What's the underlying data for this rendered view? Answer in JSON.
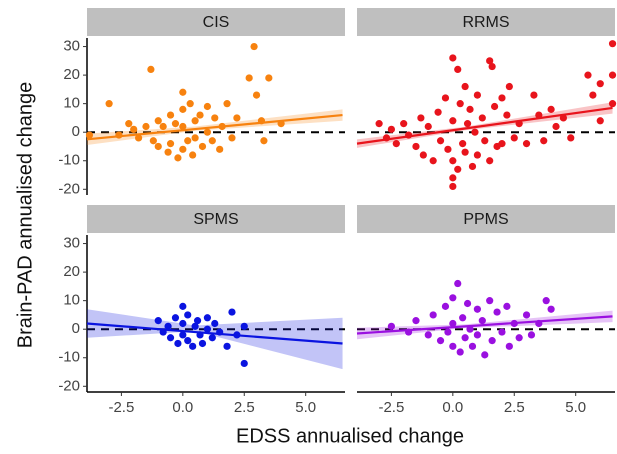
{
  "axis_labels": {
    "x": "EDSS annualised change",
    "y": "Brain-PAD annualised change"
  },
  "chart_data": [
    {
      "type": "scatter",
      "title": "CIS",
      "color": "#f7820f",
      "x": [
        -3.8,
        -3.0,
        -2.6,
        -2.2,
        -2.0,
        -1.8,
        -1.5,
        -1.3,
        -1.2,
        -1.0,
        -1.0,
        -0.8,
        -0.6,
        -0.5,
        -0.5,
        -0.3,
        -0.2,
        0.0,
        0.0,
        0.0,
        0.0,
        0.2,
        0.3,
        0.4,
        0.5,
        0.5,
        0.7,
        0.8,
        1.0,
        1.0,
        1.2,
        1.3,
        1.5,
        1.6,
        1.8,
        2.0,
        2.2,
        2.7,
        2.9,
        3.0,
        3.2,
        3.3,
        3.5,
        4.0
      ],
      "values": [
        -1,
        10,
        -1,
        3,
        1,
        -2,
        2,
        22,
        -3,
        4,
        -5,
        2,
        -7,
        -4,
        6,
        3,
        -9,
        14,
        8,
        -6,
        2,
        -3,
        10,
        -8,
        4,
        -2,
        6,
        -5,
        9,
        0,
        -3,
        5,
        -6,
        2,
        10,
        -2,
        5,
        19,
        30,
        13,
        4,
        -3,
        19,
        3
      ],
      "fit": {
        "x": [
          -3.9,
          0.5,
          6.5
        ],
        "y": [
          -2.5,
          1.1,
          6
        ],
        "lower": [
          -4.5,
          0.5,
          4
        ],
        "upper": [
          -0.5,
          2,
          8
        ]
      },
      "hline": 0,
      "xlim": [
        -3.9,
        6.6
      ],
      "ylim": [
        -22,
        33
      ],
      "yticks": [
        -20,
        -10,
        0,
        10,
        20,
        30
      ]
    },
    {
      "type": "scatter",
      "title": "RRMS",
      "color": "#e8141c",
      "x": [
        -3.0,
        -2.7,
        -2.5,
        -2.3,
        -2.0,
        -1.8,
        -1.5,
        -1.3,
        -1.2,
        -1.0,
        -0.8,
        -0.6,
        -0.5,
        -0.3,
        -0.2,
        0.0,
        0.0,
        0.0,
        0.0,
        0.0,
        0.2,
        0.2,
        0.3,
        0.4,
        0.5,
        0.5,
        0.6,
        0.7,
        0.8,
        0.9,
        1.0,
        1.0,
        1.2,
        1.3,
        1.5,
        1.5,
        1.6,
        1.7,
        1.8,
        2.0,
        2.0,
        2.2,
        2.3,
        2.5,
        2.7,
        3.0,
        3.3,
        3.5,
        3.7,
        4.0,
        4.2,
        4.5,
        4.8,
        5.5,
        5.7,
        6.0,
        6.5,
        6.5,
        6.5,
        6.0
      ],
      "values": [
        3,
        -2,
        1,
        -4,
        3,
        -1,
        -5,
        5,
        -8,
        2,
        -10,
        7,
        -3,
        12,
        -6,
        26,
        -16,
        -19,
        4,
        -10,
        22,
        -13,
        10,
        -4,
        16,
        -7,
        3,
        8,
        -12,
        0,
        13,
        -8,
        5,
        -3,
        25,
        -10,
        23,
        9,
        -5,
        12,
        -4,
        6,
        16,
        -2,
        3,
        -4,
        13,
        6,
        -3,
        8,
        2,
        5,
        -2,
        20,
        13,
        17,
        31,
        20,
        10,
        4
      ],
      "fit": {
        "x": [
          -3.9,
          0.5,
          6.5
        ],
        "y": [
          -4,
          1.3,
          8.5
        ],
        "lower": [
          -5.5,
          0.7,
          6.5
        ],
        "upper": [
          -2.5,
          1.9,
          10.5
        ]
      },
      "hline": 0,
      "xlim": [
        -3.9,
        6.6
      ],
      "ylim": [
        -22,
        33
      ]
    },
    {
      "type": "scatter",
      "title": "SPMS",
      "color": "#0a14e0",
      "x": [
        -1.0,
        -0.8,
        -0.6,
        -0.5,
        -0.3,
        -0.2,
        0.0,
        0.0,
        0.0,
        0.2,
        0.2,
        0.4,
        0.5,
        0.6,
        0.7,
        0.8,
        1.0,
        1.0,
        1.2,
        1.3,
        1.5,
        1.8,
        2.0,
        2.2,
        2.5,
        2.5
      ],
      "values": [
        3,
        -1,
        1,
        -3,
        4,
        -5,
        8,
        -2,
        2,
        5,
        -4,
        -6,
        1,
        3,
        -2,
        -5,
        4,
        0,
        -3,
        2,
        -1,
        -6,
        6,
        -2,
        1,
        -12
      ],
      "fit": {
        "x": [
          -3.9,
          0.5,
          6.5
        ],
        "y": [
          2,
          -1,
          -5
        ],
        "lower": [
          -3,
          -0.7,
          -14
        ],
        "upper": [
          7,
          1.3,
          4
        ]
      },
      "hline": 0,
      "xlim": [
        -3.9,
        6.6
      ],
      "ylim": [
        -22,
        33
      ],
      "yticks": [
        -20,
        -10,
        0,
        10,
        20,
        30
      ],
      "xticks": [
        -2.5,
        {
          "value": 0,
          "label": "0.0"
        },
        2.5,
        {
          "value": 5,
          "label": "5.0"
        }
      ]
    },
    {
      "type": "scatter",
      "title": "PPMS",
      "color": "#9a10e0",
      "x": [
        -2.5,
        -1.8,
        -1.5,
        -1.0,
        -0.8,
        -0.5,
        -0.3,
        -0.2,
        0.0,
        0.0,
        0.0,
        0.2,
        0.3,
        0.4,
        0.5,
        0.6,
        0.7,
        0.8,
        1.0,
        1.0,
        1.2,
        1.3,
        1.5,
        1.6,
        1.8,
        2.0,
        2.2,
        2.3,
        2.5,
        2.7,
        3.0,
        3.2,
        3.5,
        3.8,
        4.0
      ],
      "values": [
        1,
        -1,
        3,
        -2,
        5,
        -4,
        8,
        -1,
        11,
        -6,
        2,
        16,
        -8,
        4,
        -3,
        9,
        0,
        -6,
        7,
        -2,
        3,
        -9,
        10,
        -4,
        6,
        -1,
        8,
        -6,
        2,
        -3,
        5,
        -2,
        2,
        10,
        7
      ],
      "fit": {
        "x": [
          -3.9,
          0.5,
          6.5
        ],
        "y": [
          -1.5,
          1,
          4.5
        ],
        "lower": [
          -3.5,
          0.4,
          2.5
        ],
        "upper": [
          0.5,
          1.7,
          6.5
        ]
      },
      "hline": 0,
      "xlim": [
        -3.9,
        6.6
      ],
      "ylim": [
        -22,
        33
      ],
      "xticks": [
        -2.5,
        {
          "value": 0,
          "label": "0.0"
        },
        2.5,
        {
          "value": 5,
          "label": "5.0"
        }
      ]
    }
  ]
}
